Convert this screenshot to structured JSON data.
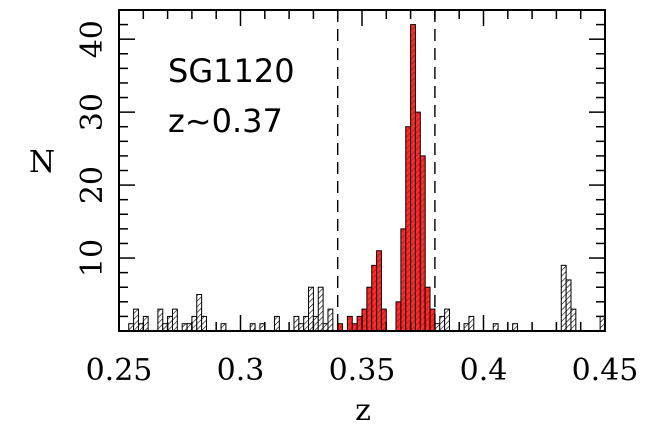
{
  "chart_data": {
    "type": "bar",
    "xlabel": "z",
    "ylabel": "N",
    "xlim": [
      0.25,
      0.45
    ],
    "ylim": [
      0,
      44
    ],
    "x_ticks": [
      0.25,
      0.3,
      0.35,
      0.4,
      0.45
    ],
    "x_tick_labels": [
      "0.25",
      "0.3",
      "0.35",
      "0.4",
      "0.45"
    ],
    "y_ticks": [
      10,
      20,
      30,
      40
    ],
    "y_tick_labels": [
      "10",
      "20",
      "30",
      "40"
    ],
    "annotations": [
      "SG1120",
      "z~0.37"
    ],
    "bin_width": 0.002,
    "reference_lines": [
      0.34,
      0.38
    ],
    "series": [
      {
        "fill": "hatched-white",
        "bins": [
          [
            0.254,
            1
          ],
          [
            0.256,
            3
          ],
          [
            0.258,
            1
          ],
          [
            0.26,
            2
          ],
          [
            0.266,
            3
          ],
          [
            0.268,
            1
          ],
          [
            0.27,
            2
          ],
          [
            0.272,
            3
          ],
          [
            0.276,
            1
          ],
          [
            0.278,
            1
          ],
          [
            0.28,
            2
          ],
          [
            0.282,
            5
          ],
          [
            0.284,
            2
          ],
          [
            0.292,
            1
          ],
          [
            0.304,
            1
          ],
          [
            0.308,
            1
          ],
          [
            0.314,
            2
          ],
          [
            0.322,
            2
          ],
          [
            0.324,
            1
          ],
          [
            0.326,
            2
          ],
          [
            0.328,
            6
          ],
          [
            0.33,
            2
          ],
          [
            0.332,
            6
          ],
          [
            0.334,
            1
          ],
          [
            0.336,
            3
          ],
          [
            0.38,
            1
          ],
          [
            0.382,
            2
          ],
          [
            0.384,
            3
          ],
          [
            0.392,
            1
          ],
          [
            0.394,
            2
          ],
          [
            0.404,
            1
          ],
          [
            0.412,
            1
          ],
          [
            0.432,
            9
          ],
          [
            0.434,
            7
          ],
          [
            0.436,
            3
          ],
          [
            0.448,
            2
          ]
        ]
      },
      {
        "fill": "red",
        "color": "#ff2a2a",
        "bins": [
          [
            0.34,
            1
          ],
          [
            0.344,
            2
          ],
          [
            0.346,
            1
          ],
          [
            0.348,
            2
          ],
          [
            0.35,
            3
          ],
          [
            0.352,
            6
          ],
          [
            0.354,
            9
          ],
          [
            0.356,
            11
          ],
          [
            0.358,
            3
          ],
          [
            0.364,
            4
          ],
          [
            0.366,
            14
          ],
          [
            0.368,
            28
          ],
          [
            0.37,
            42
          ],
          [
            0.372,
            30
          ],
          [
            0.374,
            24
          ],
          [
            0.376,
            6
          ],
          [
            0.378,
            3
          ]
        ]
      }
    ]
  }
}
